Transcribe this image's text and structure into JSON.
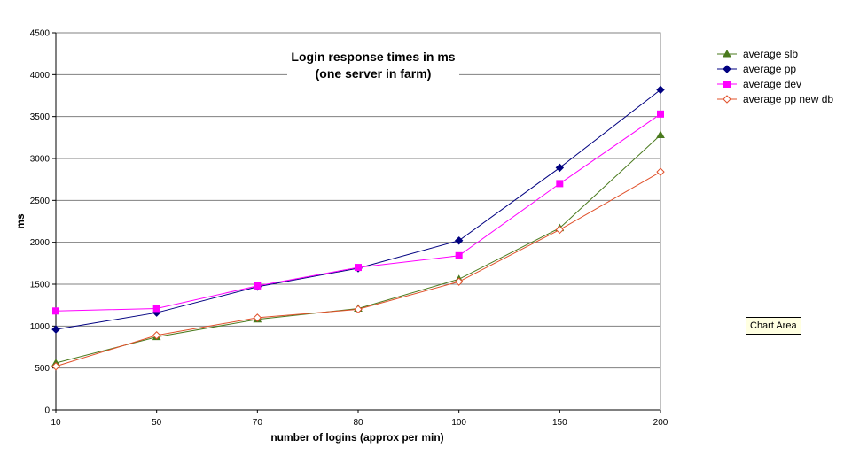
{
  "chart_data": {
    "type": "line",
    "title": [
      "Login response times in ms",
      "(one server in farm)"
    ],
    "xlabel": "number of logins (approx per min)",
    "ylabel": "ms",
    "categories": [
      "10",
      "50",
      "70",
      "80",
      "100",
      "150",
      "200"
    ],
    "ylim": [
      0,
      4500
    ],
    "yticks": [
      0,
      500,
      1000,
      1500,
      2000,
      2500,
      3000,
      3500,
      4000,
      4500
    ],
    "grid": true,
    "legend_position": "right",
    "series": [
      {
        "name": "average slb",
        "color": "#4a7a1e",
        "marker": "triangle",
        "values": [
          560,
          870,
          1080,
          1210,
          1560,
          2170,
          3280
        ]
      },
      {
        "name": "average pp",
        "color": "#000080",
        "marker": "diamond",
        "values": [
          960,
          1160,
          1470,
          1690,
          2020,
          2890,
          3820
        ]
      },
      {
        "name": "average dev",
        "color": "#ff00ff",
        "marker": "square",
        "values": [
          1180,
          1210,
          1480,
          1700,
          1840,
          2700,
          3530
        ]
      },
      {
        "name": "average pp new db",
        "color": "#e0502a",
        "marker": "diamond-open",
        "values": [
          520,
          890,
          1100,
          1200,
          1530,
          2150,
          2840
        ]
      }
    ]
  },
  "tooltip": {
    "text": "Chart Area"
  }
}
